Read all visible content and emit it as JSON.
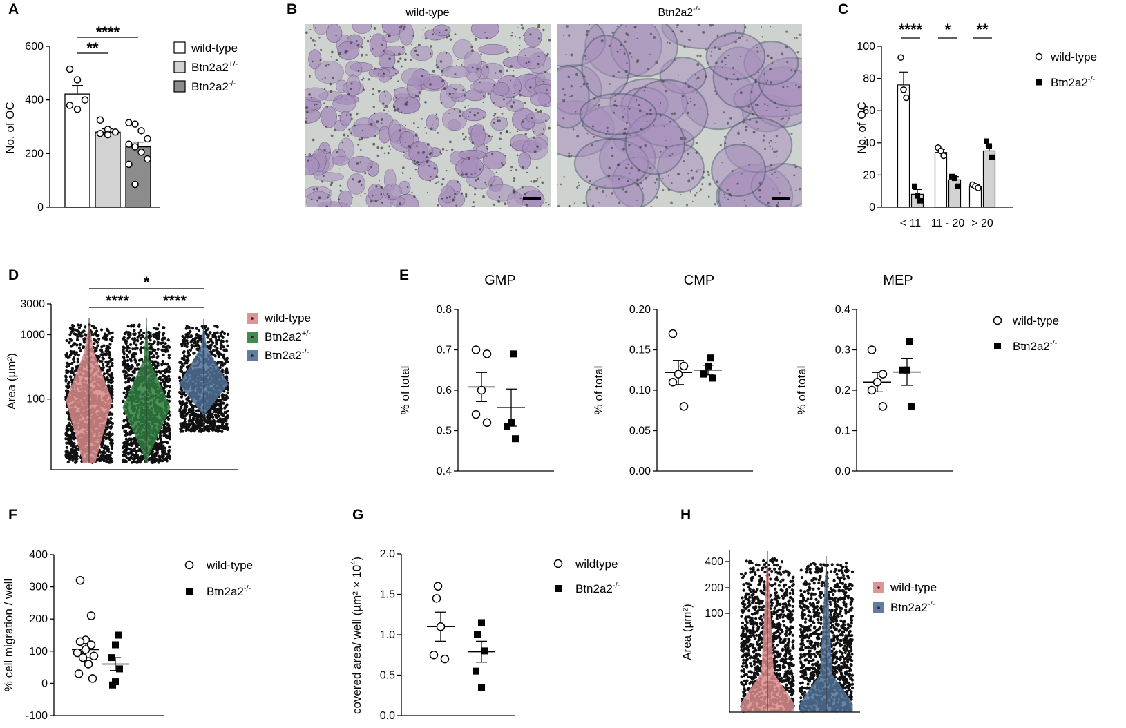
{
  "panels": {
    "A": "A",
    "B": "B",
    "C": "C",
    "D": "D",
    "E": "E",
    "F": "F",
    "G": "G",
    "H": "H"
  },
  "micrographs": {
    "left_label": "wild-type",
    "right_label_base": "Btn2a2",
    "right_label_sup": "-/-"
  },
  "colors": {
    "wt_bar": "#ffffff",
    "het_bar": "#d2d2d2",
    "ko_bar": "#8c8c8c",
    "violin_wt": "#d98a8a",
    "violin_het": "#2f7d3e",
    "violin_ko": "#4f6f95",
    "micro_bg": "#cfd3d0",
    "micro_cell": "#a890bd"
  },
  "chart_data": [
    {
      "id": "A",
      "type": "bar",
      "ylabel": "No. of OC",
      "ylim": [
        0,
        600
      ],
      "yticks": [
        "0",
        "200",
        "400",
        "600"
      ],
      "categories": [
        "wild-type",
        "Btn2a2+/-",
        "Btn2a2-/-"
      ],
      "values": [
        422,
        280,
        225
      ],
      "sem": [
        32,
        12,
        18
      ],
      "points": [
        [
          515,
          475,
          400,
          380,
          365
        ],
        [
          325,
          290,
          280,
          275,
          270
        ],
        [
          315,
          310,
          285,
          255,
          235,
          225,
          205,
          180,
          160,
          85
        ]
      ],
      "legend": [
        {
          "base": "wild-type",
          "sup": ""
        },
        {
          "base": "Btn2a2",
          "sup": "+/-"
        },
        {
          "base": "Btn2a2",
          "sup": "-/-"
        }
      ],
      "significance": [
        {
          "from": 0,
          "to": 1,
          "label": "**"
        },
        {
          "from": 0,
          "to": 2,
          "label": "****"
        }
      ]
    },
    {
      "id": "C",
      "type": "bar",
      "ylabel": "No. of OC",
      "ylim": [
        0,
        100
      ],
      "yticks": [
        "0",
        "20",
        "40",
        "60",
        "80",
        "100"
      ],
      "categories": [
        "< 11",
        "11 - 20",
        "> 20"
      ],
      "series": [
        {
          "name": "wild-type",
          "values": [
            76,
            34,
            13
          ],
          "sem": [
            8,
            2,
            1
          ],
          "points": [
            [
              93,
              73,
              68
            ],
            [
              37,
              35,
              32
            ],
            [
              14,
              13,
              12
            ]
          ]
        },
        {
          "name": "Btn2a2-/-",
          "values": [
            8,
            17,
            35
          ],
          "sem": [
            3,
            2,
            3
          ],
          "points": [
            [
              13,
              7,
              4
            ],
            [
              19,
              18,
              13
            ],
            [
              41,
              38,
              31
            ]
          ]
        }
      ],
      "legend": [
        {
          "base": "wild-type",
          "sup": ""
        },
        {
          "base": "Btn2a2",
          "sup": "-/-"
        }
      ],
      "significance": [
        "****",
        "*",
        "**"
      ]
    },
    {
      "id": "D",
      "type": "scatter",
      "ylabel": "Area (µm²)",
      "yscale": "log",
      "ylim": [
        8,
        3000
      ],
      "yticks": [
        "100",
        "1000",
        "3000"
      ],
      "groups": [
        {
          "base": "wild-type",
          "sup": ""
        },
        {
          "base": "Btn2a2",
          "sup": "+/-"
        },
        {
          "base": "Btn2a2",
          "sup": "-/-"
        }
      ],
      "significance": [
        {
          "from": 0,
          "to": 1,
          "label": "****"
        },
        {
          "from": 1,
          "to": 2,
          "label": "****"
        },
        {
          "from": 0,
          "to": 2,
          "label": "*"
        }
      ]
    },
    {
      "id": "E1",
      "type": "scatter",
      "title": "GMP",
      "ylabel": "% of total",
      "ylim": [
        0.4,
        0.8
      ],
      "yticks": [
        "0.4",
        "0.5",
        "0.6",
        "0.7",
        "0.8"
      ],
      "series": [
        {
          "name": "wild-type",
          "mean": 0.608,
          "sem": 0.036,
          "points": [
            0.7,
            0.69,
            0.6,
            0.54,
            0.52
          ]
        },
        {
          "name": "Btn2a2-/-",
          "mean": 0.557,
          "sem": 0.046,
          "points": [
            0.69,
            0.52,
            0.51,
            0.48
          ]
        }
      ]
    },
    {
      "id": "E2",
      "type": "scatter",
      "title": "CMP",
      "ylabel": "% of total",
      "ylim": [
        0.0,
        0.2
      ],
      "yticks": [
        "0.00",
        "0.05",
        "0.10",
        "0.15",
        "0.20"
      ],
      "series": [
        {
          "name": "wild-type",
          "mean": 0.122,
          "sem": 0.015,
          "points": [
            0.17,
            0.13,
            0.12,
            0.11,
            0.08
          ]
        },
        {
          "name": "Btn2a2-/-",
          "mean": 0.125,
          "sem": 0.006,
          "points": [
            0.14,
            0.13,
            0.12,
            0.115
          ]
        }
      ]
    },
    {
      "id": "E3",
      "type": "scatter",
      "title": "MEP",
      "ylabel": "% of total",
      "ylim": [
        0.0,
        0.4
      ],
      "yticks": [
        "0.0",
        "0.1",
        "0.2",
        "0.3",
        "0.4"
      ],
      "series": [
        {
          "name": "wild-type",
          "mean": 0.22,
          "sem": 0.024,
          "points": [
            0.3,
            0.24,
            0.22,
            0.2,
            0.16
          ]
        },
        {
          "name": "Btn2a2-/-",
          "mean": 0.245,
          "sem": 0.033,
          "points": [
            0.32,
            0.25,
            0.25,
            0.16
          ]
        }
      ],
      "legend": [
        {
          "base": "wild-type",
          "sup": ""
        },
        {
          "base": "Btn2a2",
          "sup": "-/-"
        }
      ]
    },
    {
      "id": "F",
      "type": "scatter",
      "ylabel": "% cell migration / well",
      "ylim": [
        -100,
        400
      ],
      "yticks": [
        "-100",
        "0",
        "100",
        "200",
        "300",
        "400"
      ],
      "series": [
        {
          "name": "wild-type",
          "mean": 105,
          "sem": 25,
          "points": [
            320,
            210,
            135,
            130,
            120,
            105,
            95,
            85,
            80,
            60,
            30,
            15
          ]
        },
        {
          "name": "Btn2a2-/-",
          "mean": 60,
          "sem": 20,
          "points": [
            150,
            120,
            80,
            45,
            5,
            -5
          ]
        }
      ],
      "legend": [
        {
          "base": "wild-type",
          "sup": ""
        },
        {
          "base": "Btn2a2",
          "sup": "-/-"
        }
      ]
    },
    {
      "id": "G",
      "type": "scatter",
      "ylabel": "covered area/ well (µm² × 10",
      "ylabel_sup": "4",
      "ylabel_end": ")",
      "ylim": [
        0.0,
        2.0
      ],
      "yticks": [
        "0.0",
        "0.5",
        "1.0",
        "1.5",
        "2.0"
      ],
      "series": [
        {
          "name": "wildtype",
          "mean": 1.1,
          "sem": 0.18,
          "points": [
            1.6,
            1.45,
            1.1,
            0.75,
            0.7
          ]
        },
        {
          "name": "Btn2a2-/-",
          "mean": 0.79,
          "sem": 0.13,
          "points": [
            1.15,
            1.0,
            0.8,
            0.55,
            0.35
          ]
        }
      ],
      "legend": [
        {
          "base": "wildtype",
          "sup": ""
        },
        {
          "base": "Btn2a2",
          "sup": "-/-"
        }
      ]
    },
    {
      "id": "H",
      "type": "scatter",
      "ylabel": "Area (µm²)",
      "yscale": "log",
      "yticks": [
        "100",
        "200",
        "400"
      ],
      "groups": [
        {
          "base": "wild-type",
          "sup": ""
        },
        {
          "base": "Btn2a2",
          "sup": "-/-"
        }
      ]
    }
  ]
}
